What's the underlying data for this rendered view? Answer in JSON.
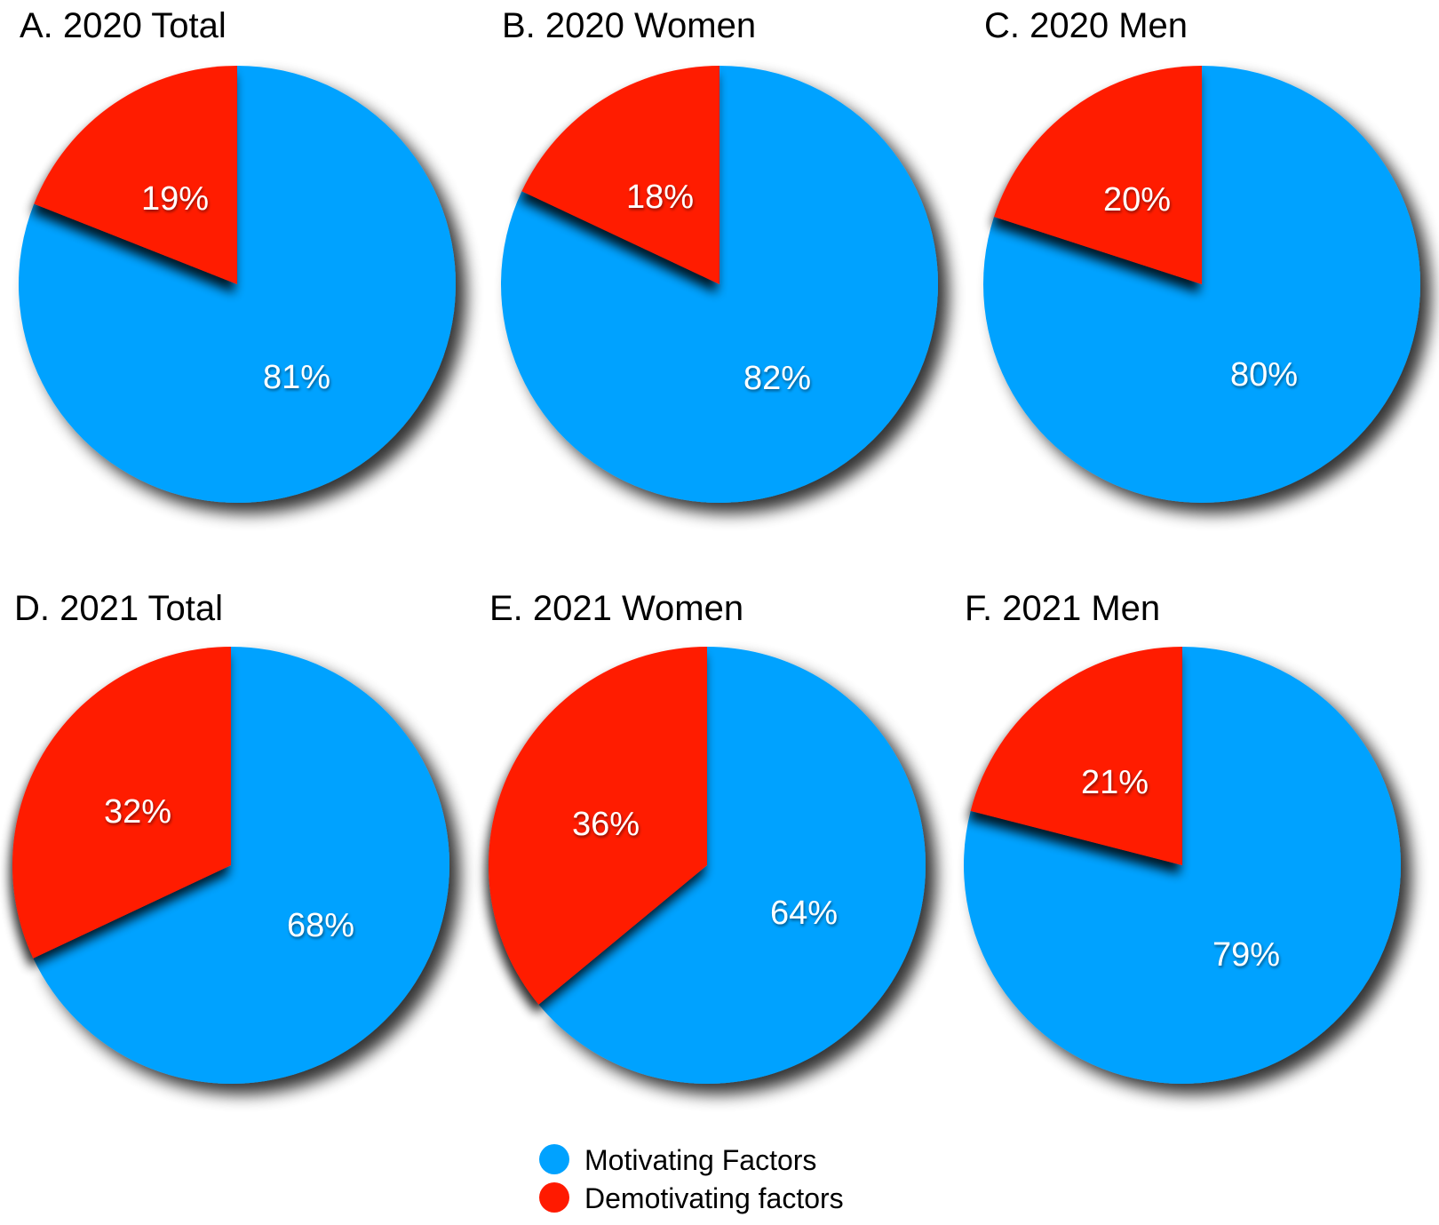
{
  "colors": {
    "motivating": "#00a2ff",
    "demotivating": "#ff1a00"
  },
  "legend": {
    "motivating_label": "Motivating Factors",
    "demotivating_label": "Demotivating factors"
  },
  "chart_data": [
    {
      "type": "pie",
      "title": "A. 2020 Total",
      "slices": [
        {
          "name": "Motivating Factors",
          "value": 81,
          "label": "81%"
        },
        {
          "name": "Demotivating factors",
          "value": 19,
          "label": "19%"
        }
      ]
    },
    {
      "type": "pie",
      "title": "B. 2020 Women",
      "slices": [
        {
          "name": "Motivating Factors",
          "value": 82,
          "label": "82%"
        },
        {
          "name": "Demotivating factors",
          "value": 18,
          "label": "18%"
        }
      ]
    },
    {
      "type": "pie",
      "title": "C. 2020 Men",
      "slices": [
        {
          "name": "Motivating Factors",
          "value": 80,
          "label": "80%"
        },
        {
          "name": "Demotivating factors",
          "value": 20,
          "label": "20%"
        }
      ]
    },
    {
      "type": "pie",
      "title": "D. 2021 Total",
      "slices": [
        {
          "name": "Motivating Factors",
          "value": 68,
          "label": "68%"
        },
        {
          "name": "Demotivating factors",
          "value": 32,
          "label": "32%"
        }
      ]
    },
    {
      "type": "pie",
      "title": "E. 2021 Women",
      "slices": [
        {
          "name": "Motivating Factors",
          "value": 64,
          "label": "64%"
        },
        {
          "name": "Demotivating factors",
          "value": 36,
          "label": "36%"
        }
      ]
    },
    {
      "type": "pie",
      "title": "F. 2021 Men",
      "slices": [
        {
          "name": "Motivating Factors",
          "value": 79,
          "label": "79%"
        },
        {
          "name": "Demotivating factors",
          "value": 21,
          "label": "21%"
        }
      ]
    }
  ]
}
